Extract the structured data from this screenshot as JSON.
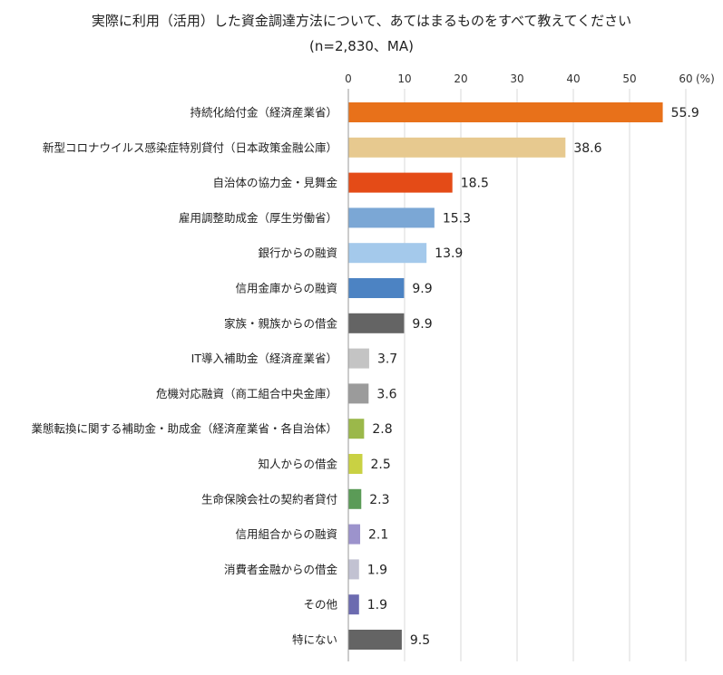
{
  "chart_data": {
    "type": "bar",
    "orientation": "horizontal",
    "title": "実際に利用（活用）した資金調達方法について、あてはまるものをすべて教えてください",
    "subtitle": "(n=2,830、MA)",
    "unit_label": "(%)",
    "xlim": [
      0,
      60
    ],
    "ticks": [
      0,
      10,
      20,
      30,
      40,
      50,
      60
    ],
    "grid": true,
    "categories": [
      "持続化給付金（経済産業省）",
      "新型コロナウイルス感染症特別貸付（日本政策金融公庫）",
      "自治体の協力金・見舞金",
      "雇用調整助成金（厚生労働省）",
      "銀行からの融資",
      "信用金庫からの融資",
      "家族・親族からの借金",
      "IT導入補助金（経済産業省）",
      "危機対応融資（商工組合中央金庫）",
      "業態転換に関する補助金・助成金（経済産業省・各自治体）",
      "知人からの借金",
      "生命保険会社の契約者貸付",
      "信用組合からの融資",
      "消費者金融からの借金",
      "その他",
      "特にない"
    ],
    "values": [
      55.9,
      38.6,
      18.5,
      15.3,
      13.9,
      9.9,
      9.9,
      3.7,
      3.6,
      2.8,
      2.5,
      2.3,
      2.1,
      1.9,
      1.9,
      9.5
    ],
    "value_labels": [
      "55.9",
      "38.6",
      "18.5",
      "15.3",
      "13.9",
      "9.9",
      "9.9",
      "3.7",
      "3.6",
      "2.8",
      "2.5",
      "2.3",
      "2.1",
      "1.9",
      "1.9",
      "9.5"
    ],
    "colors": [
      "#E8711A",
      "#E7C98F",
      "#E44B17",
      "#7BA7D5",
      "#A4C9EB",
      "#4C83C3",
      "#646464",
      "#C4C4C4",
      "#9B9B9B",
      "#9BB84A",
      "#C9D143",
      "#5B9B57",
      "#9C93CC",
      "#C2C2D2",
      "#6C6BB0",
      "#646464"
    ]
  }
}
